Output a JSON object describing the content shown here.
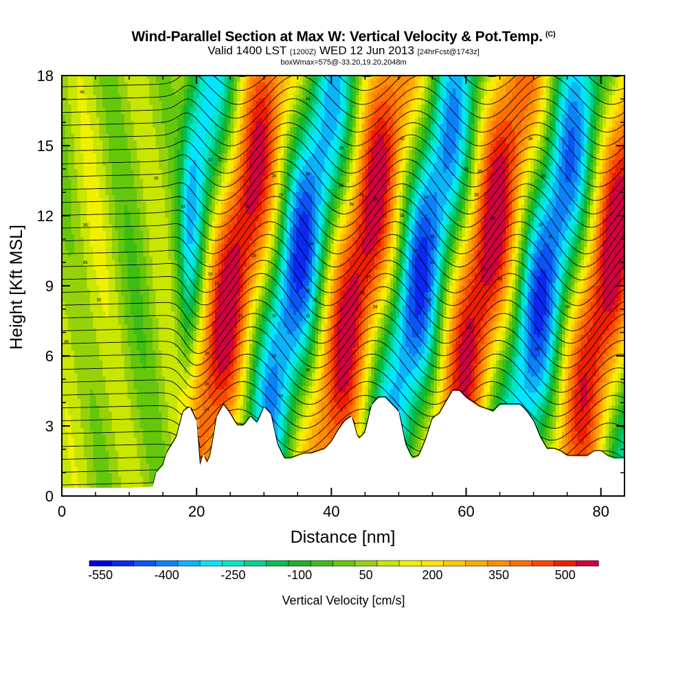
{
  "title": {
    "main": "Wind-Parallel Section at Max W: Vertical Velocity & Pot.Temp.",
    "copyright": "(C)",
    "valid_prefix": "Valid 1400 LST",
    "valid_utc": "(1200Z)",
    "valid_date": "WED 12 Jun 2013",
    "forecast": "[24hrFcst@1743z]",
    "box_info": "boxWmax=575@-33.20,19.20,2048m"
  },
  "chart_data": {
    "type": "heatmap",
    "xlabel": "Distance [nm]",
    "ylabel": "Height [Kft MSL]",
    "xlim": [
      0,
      83.5
    ],
    "ylim": [
      0,
      18
    ],
    "x_ticks": [
      0,
      20,
      40,
      60,
      80
    ],
    "y_ticks": [
      0,
      3,
      6,
      9,
      12,
      15,
      18
    ],
    "colorbar": {
      "label": "Vertical Velocity [cm/s]",
      "tick_values": [
        -550,
        -400,
        -250,
        -100,
        50,
        200,
        350,
        500
      ],
      "levels": [
        -575,
        -525,
        -475,
        -425,
        -375,
        -325,
        -275,
        -225,
        -175,
        -125,
        -75,
        -25,
        25,
        75,
        125,
        175,
        225,
        275,
        325,
        375,
        425,
        475,
        525,
        575
      ],
      "colors": [
        "#0000e8",
        "#0a28f0",
        "#0a55f5",
        "#0a82f8",
        "#0ab4fa",
        "#00e6ff",
        "#00e6c8",
        "#00d28c",
        "#00c050",
        "#19b428",
        "#3cbe14",
        "#64c80a",
        "#96d20a",
        "#c8e600",
        "#f0f000",
        "#ffe600",
        "#ffc800",
        "#ffaa00",
        "#ff8c00",
        "#ff6e00",
        "#ff4600",
        "#f01e00",
        "#d2003c"
      ]
    },
    "updraft_maxima_nm": [
      23,
      33,
      51,
      71
    ],
    "downdraft_minima_nm": [
      20.5,
      37,
      55,
      65,
      75
    ],
    "max_w_cm_s": 575,
    "terrain_kft": {
      "x": [
        0,
        10,
        13.5,
        14,
        15,
        15.5,
        17,
        18,
        19,
        20,
        20.5,
        21,
        21.5,
        22,
        22.5,
        23,
        24,
        25,
        26,
        27,
        28,
        29,
        30,
        31,
        32,
        33,
        34,
        35,
        36,
        37,
        38,
        39,
        40,
        41,
        42,
        43,
        44,
        45,
        46,
        47,
        48,
        49,
        50,
        51,
        52,
        53,
        54,
        55,
        56,
        57,
        58,
        59,
        60,
        61,
        62,
        63,
        64,
        65,
        66,
        67,
        68,
        69,
        70,
        71,
        72,
        73,
        74,
        75,
        76,
        77,
        78,
        79,
        80,
        81,
        82,
        83.5
      ],
      "y": [
        0.35,
        0.35,
        0.4,
        1.0,
        1.3,
        1.8,
        2.5,
        3.6,
        3.8,
        3.2,
        1.3,
        1.8,
        1.4,
        1.7,
        2.5,
        3.4,
        3.9,
        3.5,
        3.0,
        3.0,
        3.4,
        3.1,
        3.8,
        3.5,
        2.2,
        1.6,
        1.6,
        1.7,
        1.8,
        1.8,
        1.9,
        2.0,
        2.3,
        2.8,
        3.2,
        3.4,
        2.4,
        2.7,
        3.9,
        4.2,
        4.2,
        3.9,
        3.6,
        2.2,
        1.6,
        1.7,
        2.4,
        3.3,
        3.5,
        4.0,
        4.5,
        4.5,
        4.2,
        4.0,
        3.8,
        3.7,
        3.6,
        3.9,
        3.9,
        3.9,
        3.9,
        3.6,
        3.2,
        2.5,
        2.0,
        2.0,
        1.9,
        1.7,
        1.7,
        1.7,
        1.7,
        1.9,
        1.9,
        1.7,
        1.6,
        1.6
      ]
    },
    "contour_labels": [
      {
        "x": 3,
        "y": 17.3,
        "text": "46"
      },
      {
        "x": 14,
        "y": 13.6,
        "text": "36"
      },
      {
        "x": 3.5,
        "y": 11.6,
        "text": "36"
      },
      {
        "x": 3.5,
        "y": 10.0,
        "text": "86"
      },
      {
        "x": 5.5,
        "y": 8.4,
        "text": "36"
      },
      {
        "x": 0.7,
        "y": 6.6,
        "text": "86"
      },
      {
        "x": 18,
        "y": 12.4,
        "text": "34"
      },
      {
        "x": 22,
        "y": 14.4,
        "text": "33"
      },
      {
        "x": 23.5,
        "y": 14.4,
        "text": "32"
      },
      {
        "x": 22,
        "y": 9.5,
        "text": "33"
      },
      {
        "x": 23,
        "y": 9.1,
        "text": "31"
      },
      {
        "x": 21.5,
        "y": 6.1,
        "text": "28"
      },
      {
        "x": 21.5,
        "y": 4.8,
        "text": "26"
      },
      {
        "x": 21.5,
        "y": 3.7,
        "text": "24"
      },
      {
        "x": 27.5,
        "y": 12.4,
        "text": "36"
      },
      {
        "x": 28.5,
        "y": 10.3,
        "text": "29"
      },
      {
        "x": 26.5,
        "y": 7.7,
        "text": "38"
      },
      {
        "x": 31.5,
        "y": 13.7,
        "text": "29"
      },
      {
        "x": 32.5,
        "y": 12.9,
        "text": "28"
      },
      {
        "x": 36.5,
        "y": 17.0,
        "text": "36"
      },
      {
        "x": 36.5,
        "y": 13.8,
        "text": "36"
      },
      {
        "x": 37,
        "y": 10.8,
        "text": "34"
      },
      {
        "x": 36.5,
        "y": 8.8,
        "text": "29"
      },
      {
        "x": 37.5,
        "y": 8.4,
        "text": "36"
      },
      {
        "x": 36.5,
        "y": 7.7,
        "text": "32"
      },
      {
        "x": 31.5,
        "y": 7.7,
        "text": "30"
      },
      {
        "x": 31.5,
        "y": 6.0,
        "text": "33"
      },
      {
        "x": 32.5,
        "y": 4.3,
        "text": "34"
      },
      {
        "x": 36.5,
        "y": 5.4,
        "text": "36"
      },
      {
        "x": 41.5,
        "y": 14.9,
        "text": "39"
      },
      {
        "x": 41.5,
        "y": 13.3,
        "text": "32"
      },
      {
        "x": 43,
        "y": 12.5,
        "text": "3a"
      },
      {
        "x": 44.5,
        "y": 12.9,
        "text": "36"
      },
      {
        "x": 46.5,
        "y": 12.7,
        "text": "36"
      },
      {
        "x": 45.5,
        "y": 9.4,
        "text": "39"
      },
      {
        "x": 44.5,
        "y": 8.7,
        "text": "38"
      },
      {
        "x": 46.5,
        "y": 8.1,
        "text": "38"
      },
      {
        "x": 50.5,
        "y": 15.3,
        "text": "42"
      },
      {
        "x": 50.5,
        "y": 12.0,
        "text": "36"
      },
      {
        "x": 52.5,
        "y": 10.5,
        "text": "36"
      },
      {
        "x": 54,
        "y": 12.8,
        "text": "34"
      },
      {
        "x": 55,
        "y": 11.1,
        "text": "36"
      },
      {
        "x": 55,
        "y": 10.0,
        "text": "38"
      },
      {
        "x": 54.5,
        "y": 8.4,
        "text": "33"
      },
      {
        "x": 60,
        "y": 14.0,
        "text": "38"
      },
      {
        "x": 61.5,
        "y": 12.9,
        "text": "38"
      },
      {
        "x": 62,
        "y": 13.9,
        "text": "36"
      },
      {
        "x": 60.5,
        "y": 7.2,
        "text": "36"
      },
      {
        "x": 64,
        "y": 11.9,
        "text": "36"
      },
      {
        "x": 63,
        "y": 9.7,
        "text": "36"
      },
      {
        "x": 65,
        "y": 9.3,
        "text": "34"
      },
      {
        "x": 69.5,
        "y": 15.3,
        "text": "36"
      },
      {
        "x": 72,
        "y": 15.3,
        "text": "38"
      },
      {
        "x": 71.5,
        "y": 13.7,
        "text": "36"
      },
      {
        "x": 71,
        "y": 11.6,
        "text": "36"
      },
      {
        "x": 72.5,
        "y": 11.1,
        "text": "36"
      },
      {
        "x": 70.5,
        "y": 6.3,
        "text": "36"
      },
      {
        "x": 75,
        "y": 8.1,
        "text": "36"
      }
    ]
  }
}
